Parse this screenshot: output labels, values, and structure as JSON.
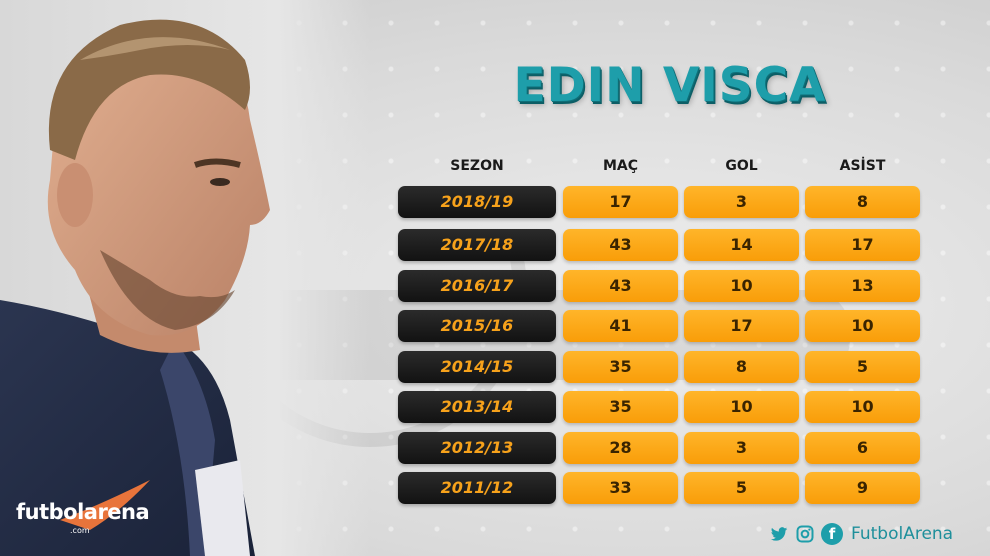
{
  "title": "EDIN VISCA",
  "headers": {
    "season": "SEZON",
    "mac": "MAÇ",
    "gol": "GOL",
    "asist": "ASİST"
  },
  "rows": [
    {
      "season": "2018/19",
      "mac": "17",
      "gol": "3",
      "asist": "8"
    },
    {
      "season": "2017/18",
      "mac": "43",
      "gol": "14",
      "asist": "17"
    },
    {
      "season": "2016/17",
      "mac": "43",
      "gol": "10",
      "asist": "13"
    },
    {
      "season": "2015/16",
      "mac": "41",
      "gol": "17",
      "asist": "10"
    },
    {
      "season": "2014/15",
      "mac": "35",
      "gol": "8",
      "asist": "5"
    },
    {
      "season": "2013/14",
      "mac": "35",
      "gol": "10",
      "asist": "10"
    },
    {
      "season": "2012/13",
      "mac": "28",
      "gol": "3",
      "asist": "6"
    },
    {
      "season": "2011/12",
      "mac": "33",
      "gol": "5",
      "asist": "9"
    }
  ],
  "logo": {
    "text": "futbolarena",
    "sub": ".com"
  },
  "footer": {
    "handle": "FutbolArena",
    "icons": [
      "twitter-icon",
      "instagram-icon",
      "facebook-icon"
    ]
  },
  "colors": {
    "accent": "#1e9eaa",
    "orange": "#f99d08",
    "dark": "#121212"
  }
}
